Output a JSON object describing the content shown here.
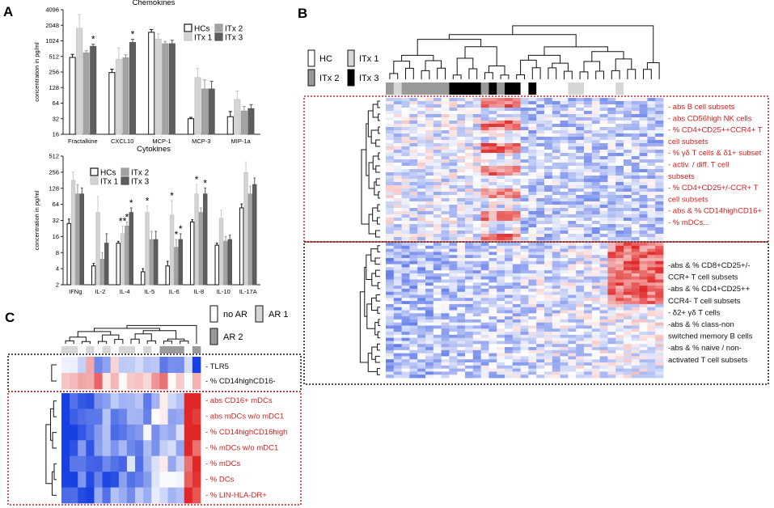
{
  "panels": {
    "a": "A",
    "b": "B",
    "c": "C"
  },
  "chart_data": [
    {
      "type": "bar",
      "title": "Chemokines",
      "ylabel": "concentration in pg/ml",
      "yscale": "log2",
      "yticks": [
        16,
        32,
        64,
        128,
        256,
        512,
        1024,
        2048,
        4096
      ],
      "ylim": [
        16,
        4096
      ],
      "categories": [
        "Fractalkine",
        "CXCL10",
        "MCP-1",
        "MCP-3",
        "MIP-1a"
      ],
      "legend": [
        "HCs",
        "ITx 1",
        "ITx 2",
        "ITx 3"
      ],
      "series": [
        {
          "name": "HCs",
          "values": [
            490,
            250,
            1500,
            32,
            35
          ],
          "errors": [
            560,
            290,
            1700,
            34,
            44
          ]
        },
        {
          "name": "ITx 1",
          "values": [
            1800,
            450,
            1100,
            200,
            75
          ],
          "errors": [
            3300,
            750,
            1400,
            300,
            110
          ]
        },
        {
          "name": "ITx 2",
          "values": [
            600,
            480,
            900,
            120,
            45
          ],
          "errors": [
            660,
            550,
            1000,
            180,
            55
          ]
        },
        {
          "name": "ITx 3",
          "values": [
            800,
            950,
            900,
            120,
            50
          ],
          "errors": [
            880,
            1100,
            1050,
            170,
            60
          ]
        }
      ],
      "stars": [
        {
          "category": "Fractalkine",
          "series": "ITx 3",
          "label": "*"
        },
        {
          "category": "CXCL10",
          "series": "ITx 3",
          "label": "*"
        }
      ]
    },
    {
      "type": "bar",
      "title": "Cytokines",
      "ylabel": "concentration in pg/ml",
      "yscale": "log2",
      "yticks": [
        2,
        4,
        8,
        16,
        32,
        64,
        128,
        256,
        512
      ],
      "ylim": [
        2,
        512
      ],
      "categories": [
        "IFNg",
        "IL-2",
        "IL-4",
        "IL-5",
        "IL-6",
        "IL-8",
        "IL-10",
        "IL-17A"
      ],
      "legend": [
        "HCs",
        "ITx 1",
        "ITx 2",
        "ITx 3"
      ],
      "series": [
        {
          "name": "HCs",
          "values": [
            28,
            4.5,
            12,
            3.5,
            4.5,
            30,
            11,
            55
          ],
          "errors": [
            34,
            5,
            13,
            4,
            5.5,
            33,
            12,
            65
          ]
        },
        {
          "name": "ITx 1",
          "values": [
            180,
            45,
            18,
            45,
            40,
            100,
            35,
            250
          ],
          "errors": [
            260,
            90,
            25,
            60,
            75,
            150,
            50,
            400
          ]
        },
        {
          "name": "ITx 2",
          "values": [
            100,
            6,
            25,
            14,
            10,
            45,
            13,
            100
          ],
          "errors": [
            150,
            8,
            30,
            20,
            14,
            55,
            16,
            140
          ]
        },
        {
          "name": "ITx 3",
          "values": [
            100,
            12,
            45,
            14,
            14,
            100,
            14,
            150
          ],
          "errors": [
            130,
            18,
            55,
            20,
            18,
            130,
            17,
            200
          ]
        }
      ],
      "stars": [
        {
          "category": "IL-4",
          "series": "ITx 1",
          "label": "**"
        },
        {
          "category": "IL-4",
          "series": "ITx 2",
          "label": "*"
        },
        {
          "category": "IL-4",
          "series": "ITx 3",
          "label": "*"
        },
        {
          "category": "IL-5",
          "series": "ITx 1",
          "label": "*"
        },
        {
          "category": "IL-6",
          "series": "ITx 1",
          "label": "*"
        },
        {
          "category": "IL-6",
          "series": "ITx 2",
          "label": "*"
        },
        {
          "category": "IL-6",
          "series": "ITx 3",
          "label": "*"
        },
        {
          "category": "IL-8",
          "series": "ITx 1",
          "label": "*"
        },
        {
          "category": "IL-8",
          "series": "ITx 3",
          "label": "*"
        }
      ]
    },
    {
      "type": "heatmap",
      "legend": [
        {
          "label": "HC",
          "color": "#ffffff"
        },
        {
          "label": "ITx 1",
          "color": "#d6d6d6"
        },
        {
          "label": "ITx 2",
          "color": "#9a9a9a"
        },
        {
          "label": "ITx 3",
          "color": "#000000"
        }
      ],
      "column_groups": [
        "ITx 2",
        "ITx 1",
        "ITx 2",
        "ITx 2",
        "ITx 2",
        "ITx 2",
        "ITx 2",
        "ITx 2",
        "ITx 3",
        "ITx 3",
        "ITx 3",
        "ITx 3",
        "ITx 2",
        "ITx 3",
        "ITx 2",
        "ITx 3",
        "ITx 3",
        "HC",
        "ITx 3",
        "HC",
        "HC",
        "HC",
        "HC",
        "ITx 1",
        "ITx 1",
        "HC",
        "HC",
        "HC",
        "HC",
        "ITx 1",
        "HC",
        "HC",
        "HC",
        "HC",
        "HC"
      ],
      "cluster_labels_top": [
        "- abs B cell subsets",
        "- abs CD56high NK cells",
        "- % CD4+CD25++CCR4+ T",
        "cell subsets",
        "- % γδ T cells & δ1+ subset",
        "- activ. / diff. T cell",
        "subsets",
        "- % CD4+CD25+/-CCR+ T",
        "cell subsets",
        "- abs & % CD14highCD16+",
        "- % mDCs..."
      ],
      "cluster_labels_bottom": [
        "-abs & % CD8+CD25+/-",
        "CCR+ T cell subsets",
        "-abs & % CD4+CD25++",
        "CCR4- T cell subsets",
        "- δ2+ γδ T cells",
        "-abs & % class-non",
        "switched memory B cells",
        "-abs & % naive / non-",
        "activated T cell subsets"
      ]
    },
    {
      "type": "heatmap",
      "legend": [
        {
          "label": "no AR",
          "color": "#ffffff"
        },
        {
          "label": "AR 1",
          "color": "#d6d6d6"
        },
        {
          "label": "AR 2",
          "color": "#9a9a9a"
        }
      ],
      "column_groups": [
        "AR 1",
        "AR 1",
        "no AR",
        "AR 1",
        "no AR",
        "AR 1",
        "no AR",
        "AR 1",
        "AR 1",
        "no AR",
        "AR 1",
        "no AR",
        "AR 2",
        "AR 2",
        "AR 2",
        "no AR",
        "AR 2"
      ],
      "rows_top": [
        "- TLR5",
        "- % CD14highCD16-"
      ],
      "rows_bottom": [
        "- abs CD16+ mDCs",
        "- abs mDCs w/o mDC1",
        "- % CD14highCD16high",
        "- % mDCs w/o mDC1",
        "- % mDCs",
        "- % DCs",
        "- % LIN-HLA-DR+"
      ]
    }
  ]
}
